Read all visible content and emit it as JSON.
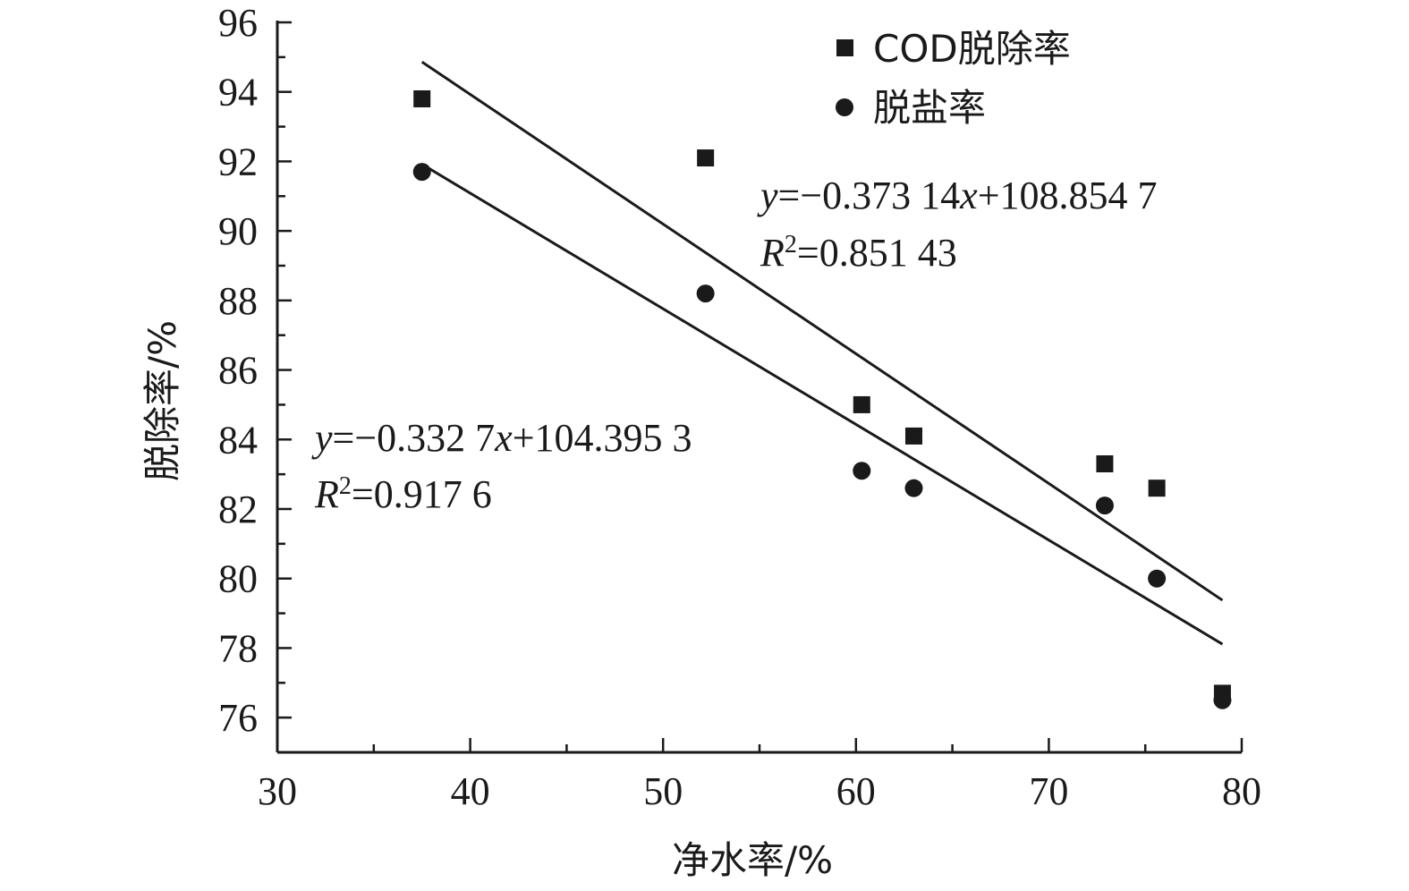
{
  "chart_data": {
    "type": "scatter",
    "xlabel": "净水率/%",
    "ylabel": "脱除率/%",
    "xlim": [
      30,
      80
    ],
    "ylim": [
      75,
      96
    ],
    "x_ticks": [
      30,
      40,
      50,
      60,
      70,
      80
    ],
    "y_ticks": [
      76,
      78,
      80,
      82,
      84,
      86,
      88,
      90,
      92,
      94,
      96
    ],
    "grid": false,
    "legend_position": "top-right",
    "series": [
      {
        "name": "COD脱除率",
        "marker": "square",
        "color": "#1a1a1a",
        "points": [
          {
            "x": 37.5,
            "y": 93.8
          },
          {
            "x": 52.2,
            "y": 92.1
          },
          {
            "x": 60.3,
            "y": 85.0
          },
          {
            "x": 63.0,
            "y": 84.1
          },
          {
            "x": 72.9,
            "y": 83.3
          },
          {
            "x": 75.6,
            "y": 82.6
          },
          {
            "x": 79.0,
            "y": 76.7
          }
        ],
        "fit": {
          "slope": -0.37314,
          "intercept": 108.8547,
          "x_range": [
            37.5,
            79.0
          ],
          "equation_parts": [
            {
              "text": "y",
              "italic": true
            },
            {
              "text": "=−0.373 14",
              "italic": false
            },
            {
              "text": "x",
              "italic": true
            },
            {
              "text": "+108.854 7",
              "italic": false
            }
          ],
          "r2_value": "=0.851 43"
        }
      },
      {
        "name": "脱盐率",
        "marker": "circle",
        "color": "#1a1a1a",
        "points": [
          {
            "x": 37.5,
            "y": 91.7
          },
          {
            "x": 52.2,
            "y": 88.2
          },
          {
            "x": 60.3,
            "y": 83.1
          },
          {
            "x": 63.0,
            "y": 82.6
          },
          {
            "x": 72.9,
            "y": 82.1
          },
          {
            "x": 75.6,
            "y": 80.0
          },
          {
            "x": 79.0,
            "y": 76.5
          }
        ],
        "fit": {
          "slope": -0.3327,
          "intercept": 104.3953,
          "x_range": [
            37.5,
            79.0
          ],
          "equation_parts": [
            {
              "text": "y",
              "italic": true
            },
            {
              "text": "=−0.332 7",
              "italic": false
            },
            {
              "text": "x",
              "italic": true
            },
            {
              "text": "+104.395 3",
              "italic": false
            }
          ],
          "r2_value": "=0.917 6"
        }
      }
    ],
    "r2_symbol": "R",
    "r2_exponent": "2"
  }
}
